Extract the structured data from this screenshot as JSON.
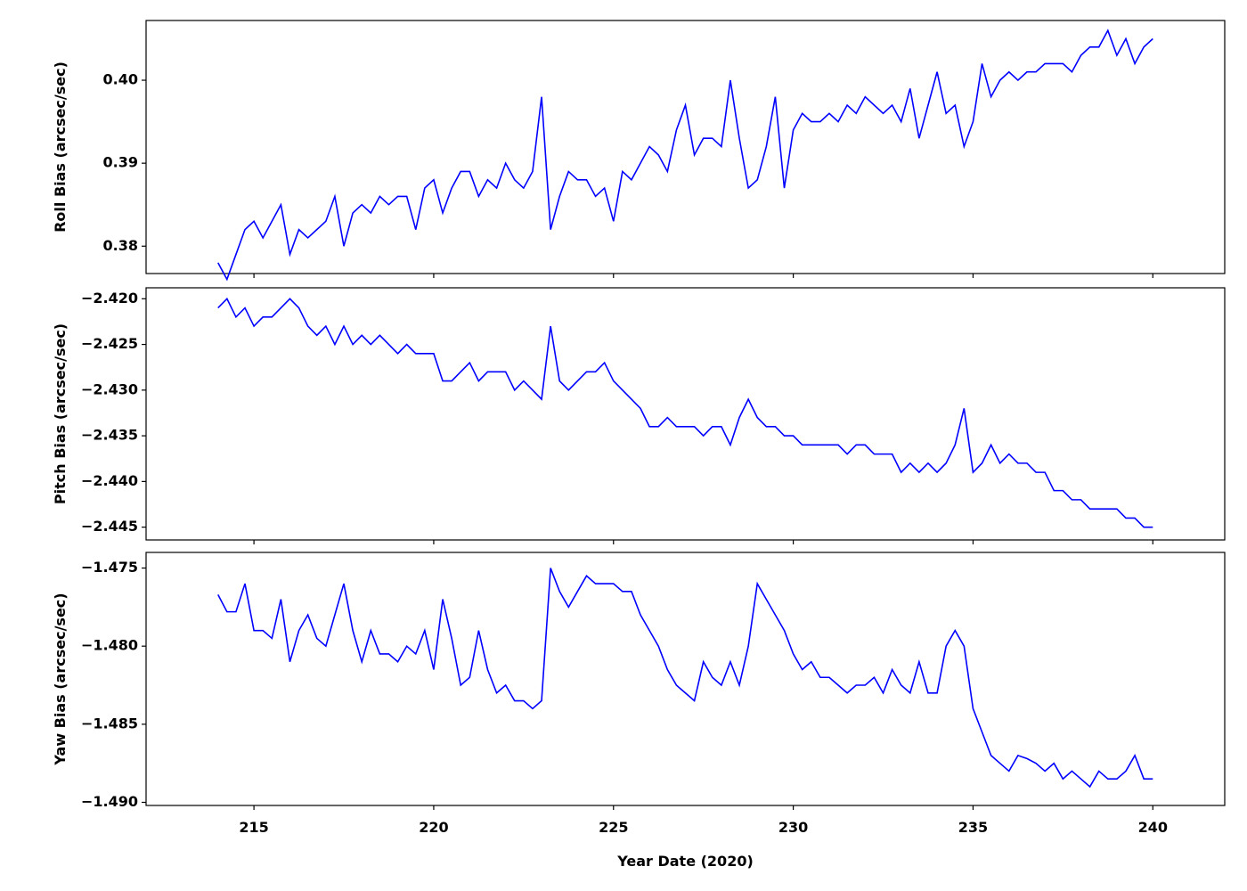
{
  "chart_data": [
    {
      "type": "line",
      "ylabel": "Roll Bias (arcsec/sec)",
      "color": "#0000ff",
      "x": [
        214,
        214.25,
        214.5,
        214.75,
        215,
        215.25,
        215.5,
        215.75,
        216,
        216.25,
        216.5,
        216.75,
        217,
        217.25,
        217.5,
        217.75,
        218,
        218.25,
        218.5,
        218.75,
        219,
        219.25,
        219.5,
        219.75,
        220,
        220.25,
        220.5,
        220.75,
        221,
        221.25,
        221.5,
        221.75,
        222,
        222.25,
        222.5,
        222.75,
        223,
        223.25,
        223.5,
        223.75,
        224,
        224.25,
        224.5,
        224.75,
        225,
        225.25,
        225.5,
        225.75,
        226,
        226.25,
        226.5,
        226.75,
        227,
        227.25,
        227.5,
        227.75,
        228,
        228.25,
        228.5,
        228.75,
        229,
        229.25,
        229.5,
        229.75,
        230,
        230.25,
        230.5,
        230.75,
        231,
        231.25,
        231.5,
        231.75,
        232,
        232.25,
        232.5,
        232.75,
        233,
        233.25,
        233.5,
        233.75,
        234,
        234.25,
        234.5,
        234.75,
        235,
        235.25,
        235.5,
        235.75,
        236,
        236.25,
        236.5,
        236.75,
        237,
        237.25,
        237.5,
        237.75,
        238,
        238.25,
        238.5,
        238.75,
        239,
        239.25,
        239.5,
        239.75,
        240
      ],
      "values": [
        0.378,
        0.376,
        0.379,
        0.382,
        0.383,
        0.381,
        0.383,
        0.385,
        0.379,
        0.382,
        0.381,
        0.382,
        0.383,
        0.386,
        0.38,
        0.384,
        0.385,
        0.384,
        0.386,
        0.385,
        0.386,
        0.386,
        0.382,
        0.387,
        0.388,
        0.384,
        0.387,
        0.389,
        0.389,
        0.386,
        0.388,
        0.387,
        0.39,
        0.388,
        0.387,
        0.389,
        0.398,
        0.382,
        0.386,
        0.389,
        0.388,
        0.388,
        0.386,
        0.387,
        0.383,
        0.389,
        0.388,
        0.39,
        0.392,
        0.391,
        0.389,
        0.394,
        0.397,
        0.391,
        0.393,
        0.393,
        0.392,
        0.4,
        0.393,
        0.387,
        0.388,
        0.392,
        0.398,
        0.387,
        0.394,
        0.396,
        0.395,
        0.395,
        0.396,
        0.395,
        0.397,
        0.396,
        0.398,
        0.397,
        0.396,
        0.397,
        0.395,
        0.399,
        0.393,
        0.397,
        0.401,
        0.396,
        0.397,
        0.392,
        0.395,
        0.402,
        0.398,
        0.4,
        0.401,
        0.4,
        0.401,
        0.401,
        0.402,
        0.402,
        0.402,
        0.401,
        0.403,
        0.404,
        0.404,
        0.406,
        0.403,
        0.405,
        0.402,
        0.404,
        0.405
      ],
      "xlim": [
        212,
        242
      ],
      "xticks": [
        215,
        220,
        225,
        230,
        235,
        240
      ],
      "ylim": [
        0.3767,
        0.4072
      ],
      "yticks": [
        0.38,
        0.39,
        {
          "value": 0.4,
          "label": "0.40"
        }
      ]
    },
    {
      "type": "line",
      "ylabel": "Pitch Bias (arcsec/sec)",
      "color": "#0000ff",
      "x": [
        214,
        214.25,
        214.5,
        214.75,
        215,
        215.25,
        215.5,
        215.75,
        216,
        216.25,
        216.5,
        216.75,
        217,
        217.25,
        217.5,
        217.75,
        218,
        218.25,
        218.5,
        218.75,
        219,
        219.25,
        219.5,
        219.75,
        220,
        220.25,
        220.5,
        220.75,
        221,
        221.25,
        221.5,
        221.75,
        222,
        222.25,
        222.5,
        222.75,
        223,
        223.25,
        223.5,
        223.75,
        224,
        224.25,
        224.5,
        224.75,
        225,
        225.25,
        225.5,
        225.75,
        226,
        226.25,
        226.5,
        226.75,
        227,
        227.25,
        227.5,
        227.75,
        228,
        228.25,
        228.5,
        228.75,
        229,
        229.25,
        229.5,
        229.75,
        230,
        230.25,
        230.5,
        230.75,
        231,
        231.25,
        231.5,
        231.75,
        232,
        232.25,
        232.5,
        232.75,
        233,
        233.25,
        233.5,
        233.75,
        234,
        234.25,
        234.5,
        234.75,
        235,
        235.25,
        235.5,
        235.75,
        236,
        236.25,
        236.5,
        236.75,
        237,
        237.25,
        237.5,
        237.75,
        238,
        238.25,
        238.5,
        238.75,
        239,
        239.25,
        239.5,
        239.75,
        240
      ],
      "values": [
        -2.421,
        -2.42,
        -2.422,
        -2.421,
        -2.423,
        -2.422,
        -2.422,
        -2.421,
        -2.42,
        -2.421,
        -2.423,
        -2.424,
        -2.423,
        -2.425,
        -2.423,
        -2.425,
        -2.424,
        -2.425,
        -2.424,
        -2.425,
        -2.426,
        -2.425,
        -2.426,
        -2.426,
        -2.426,
        -2.429,
        -2.429,
        -2.428,
        -2.427,
        -2.429,
        -2.428,
        -2.428,
        -2.428,
        -2.43,
        -2.429,
        -2.43,
        -2.431,
        -2.423,
        -2.429,
        -2.43,
        -2.429,
        -2.428,
        -2.428,
        -2.427,
        -2.429,
        -2.43,
        -2.431,
        -2.432,
        -2.434,
        -2.434,
        -2.433,
        -2.434,
        -2.434,
        -2.434,
        -2.435,
        -2.434,
        -2.434,
        -2.436,
        -2.433,
        -2.431,
        -2.433,
        -2.434,
        -2.434,
        -2.435,
        -2.435,
        -2.436,
        -2.436,
        -2.436,
        -2.436,
        -2.436,
        -2.437,
        -2.436,
        -2.436,
        -2.437,
        -2.437,
        -2.437,
        -2.439,
        -2.438,
        -2.439,
        -2.438,
        -2.439,
        -2.438,
        -2.436,
        -2.432,
        -2.439,
        -2.438,
        -2.436,
        -2.438,
        -2.437,
        -2.438,
        -2.438,
        -2.439,
        -2.439,
        -2.441,
        -2.441,
        -2.442,
        -2.442,
        -2.443,
        -2.443,
        -2.443,
        -2.443,
        -2.444,
        -2.444,
        -2.445,
        -2.445
      ],
      "xlim": [
        212,
        242
      ],
      "xticks": [
        215,
        220,
        225,
        230,
        235,
        240
      ],
      "ylim": [
        -2.4464,
        -2.4188
      ],
      "yticks": [
        {
          "value": -2.42,
          "label": "−2.420"
        },
        {
          "value": -2.425,
          "label": "−2.425"
        },
        {
          "value": -2.43,
          "label": "−2.430"
        },
        {
          "value": -2.435,
          "label": "−2.435"
        },
        {
          "value": -2.44,
          "label": "−2.440"
        },
        {
          "value": -2.445,
          "label": "−2.445"
        }
      ]
    },
    {
      "type": "line",
      "ylabel": "Yaw Bias (arcsec/sec)",
      "xlabel": "Year Date (2020)",
      "color": "#0000ff",
      "x": [
        214,
        214.25,
        214.5,
        214.75,
        215,
        215.25,
        215.5,
        215.75,
        216,
        216.25,
        216.5,
        216.75,
        217,
        217.25,
        217.5,
        217.75,
        218,
        218.25,
        218.5,
        218.75,
        219,
        219.25,
        219.5,
        219.75,
        220,
        220.25,
        220.5,
        220.75,
        221,
        221.25,
        221.5,
        221.75,
        222,
        222.25,
        222.5,
        222.75,
        223,
        223.25,
        223.5,
        223.75,
        224,
        224.25,
        224.5,
        224.75,
        225,
        225.25,
        225.5,
        225.75,
        226,
        226.25,
        226.5,
        226.75,
        227,
        227.25,
        227.5,
        227.75,
        228,
        228.25,
        228.5,
        228.75,
        229,
        229.25,
        229.5,
        229.75,
        230,
        230.25,
        230.5,
        230.75,
        231,
        231.25,
        231.5,
        231.75,
        232,
        232.25,
        232.5,
        232.75,
        233,
        233.25,
        233.5,
        233.75,
        234,
        234.25,
        234.5,
        234.75,
        235,
        235.25,
        235.5,
        235.75,
        236,
        236.25,
        236.5,
        236.75,
        237,
        237.25,
        237.5,
        237.75,
        238,
        238.25,
        238.5,
        238.75,
        239,
        239.25,
        239.5,
        239.75,
        240
      ],
      "values": [
        -1.4767,
        -1.4778,
        -1.4778,
        -1.476,
        -1.479,
        -1.479,
        -1.4795,
        -1.477,
        -1.481,
        -1.479,
        -1.478,
        -1.4795,
        -1.48,
        -1.478,
        -1.476,
        -1.479,
        -1.481,
        -1.479,
        -1.4805,
        -1.4805,
        -1.481,
        -1.48,
        -1.4805,
        -1.479,
        -1.4815,
        -1.477,
        -1.4795,
        -1.4825,
        -1.482,
        -1.479,
        -1.4815,
        -1.483,
        -1.4825,
        -1.4835,
        -1.4835,
        -1.484,
        -1.4835,
        -1.475,
        -1.4765,
        -1.4775,
        -1.4765,
        -1.4755,
        -1.476,
        -1.476,
        -1.476,
        -1.4765,
        -1.4765,
        -1.478,
        -1.479,
        -1.48,
        -1.4815,
        -1.4825,
        -1.483,
        -1.4835,
        -1.481,
        -1.482,
        -1.4825,
        -1.481,
        -1.4825,
        -1.48,
        -1.476,
        -1.477,
        -1.478,
        -1.479,
        -1.4805,
        -1.4815,
        -1.481,
        -1.482,
        -1.482,
        -1.4825,
        -1.483,
        -1.4825,
        -1.4825,
        -1.482,
        -1.483,
        -1.4815,
        -1.4825,
        -1.483,
        -1.481,
        -1.483,
        -1.483,
        -1.48,
        -1.479,
        -1.48,
        -1.484,
        -1.4855,
        -1.487,
        -1.4875,
        -1.488,
        -1.487,
        -1.4872,
        -1.4875,
        -1.488,
        -1.4875,
        -1.4885,
        -1.488,
        -1.4885,
        -1.489,
        -1.488,
        -1.4885,
        -1.4885,
        -1.488,
        -1.487,
        -1.4885,
        -1.4885
      ],
      "xlim": [
        212,
        242
      ],
      "xticks": [
        215,
        220,
        225,
        230,
        235,
        240
      ],
      "ylim": [
        -1.4902,
        -1.474
      ],
      "yticks": [
        {
          "value": -1.475,
          "label": "−1.475"
        },
        {
          "value": -1.48,
          "label": "−1.480"
        },
        {
          "value": -1.485,
          "label": "−1.485"
        },
        {
          "value": -1.49,
          "label": "−1.490"
        }
      ]
    }
  ]
}
